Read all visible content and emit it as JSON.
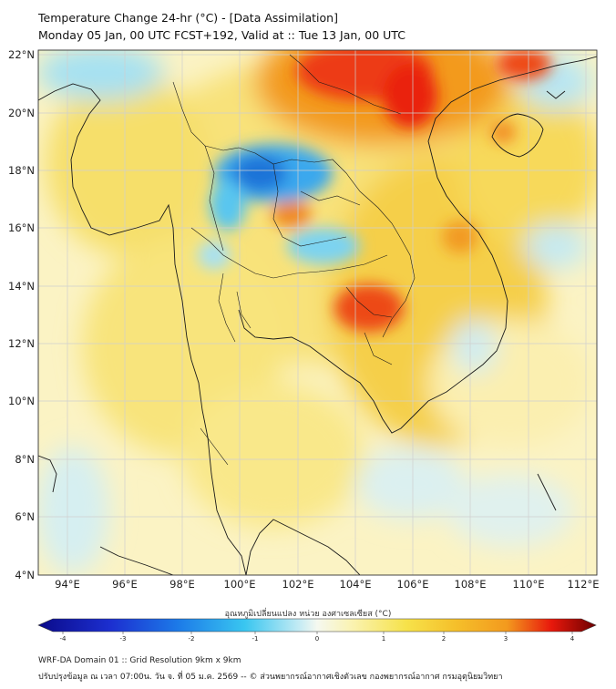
{
  "header": {
    "title_line1": "Temperature Change 24-hr (°C) - [Data Assimilation]",
    "title_line2": "Monday 05 Jan, 00 UTC FCST+192, Valid at :: Tue 13 Jan, 00 UTC"
  },
  "map": {
    "lat_labels": [
      "22°N",
      "20°N",
      "18°N",
      "16°N",
      "14°N",
      "12°N",
      "10°N",
      "8°N",
      "6°N",
      "4°N"
    ],
    "lon_labels": [
      "94°E",
      "96°E",
      "98°E",
      "100°E",
      "102°E",
      "104°E",
      "106°E",
      "108°E",
      "110°E",
      "112°E"
    ]
  },
  "colorbar": {
    "title": "อุณหภูมิเปลี่ยนแปลง หน่วย องศาเซลเซียส (°C)",
    "ticks": [
      "-4",
      "-3",
      "-2",
      "-1",
      "0",
      "1",
      "2",
      "3",
      "4"
    ],
    "colors": {
      "deep_blue": "#0b0b8a",
      "blue": "#1c5be0",
      "cyan": "#39c6f0",
      "pale": "#f5f8f0",
      "yellow": "#f6e24a",
      "orange": "#f39a1e",
      "red": "#e8180c",
      "dark_red": "#6d0000"
    }
  },
  "footer": {
    "line1": "WRF-DA Domain 01 :: Grid Resolution 9km x 9km",
    "line2": "ปรับปรุงข้อมูล ณ เวลา 07:00น. วัน จ. ที่ 05 ม.ค. 2569 -- © ส่วนพยากรณ์อากาศเชิงตัวเลข กองพยากรณ์อากาศ กรมอุตุนิยมวิทยา"
  }
}
